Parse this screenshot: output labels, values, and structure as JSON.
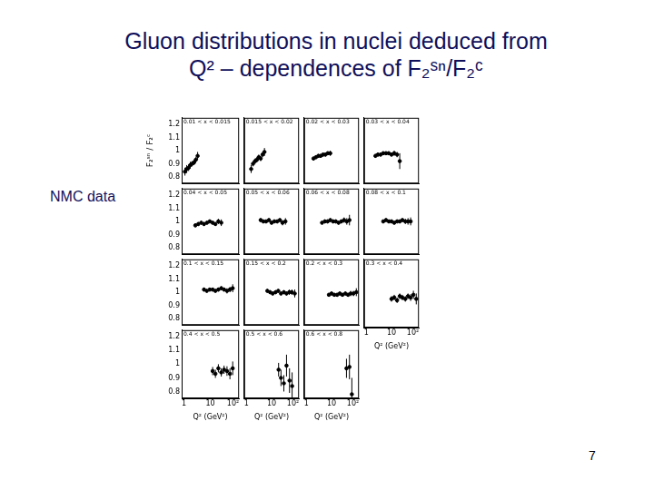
{
  "title": [
    "Gluon distributions in nuclei deduced from",
    "Q² – dependences of F₂ˢⁿ/F₂ᶜ"
  ],
  "side_label": "NMC data",
  "page_number": "7",
  "chart_data": [
    {
      "type": "scatter",
      "title": "0.01 < x < 0.015",
      "y_label": "F₂ˢⁿ / F₂ᶜ",
      "tick_labels": "y",
      "log": "x",
      "grid": false,
      "color": "#000000",
      "marker": "circle",
      "xlim": [
        1,
        100
      ],
      "xticks": [
        1,
        10,
        {
          "value": 100,
          "label": "10²"
        }
      ],
      "ylim": [
        0.75,
        1.25
      ],
      "yticks": [
        0.8,
        0.9,
        1,
        1.1,
        1.2
      ],
      "x": [
        1.3,
        1.5,
        1.75,
        2.0,
        2.3,
        2.7,
        3.1,
        3.6
      ],
      "values": [
        0.84,
        0.86,
        0.87,
        0.89,
        0.9,
        0.91,
        0.93,
        0.96
      ],
      "errors": [
        0.03,
        0.03,
        0.025,
        0.025,
        0.02,
        0.02,
        0.02,
        0.03
      ]
    },
    {
      "type": "scatter",
      "title": "0.015 < x < 0.02",
      "tick_labels": false,
      "log": "x",
      "grid": false,
      "color": "#000000",
      "marker": "circle",
      "xlim": [
        1,
        100
      ],
      "xticks": [
        1,
        10,
        {
          "value": 100,
          "label": "10²"
        }
      ],
      "ylim": [
        0.75,
        1.25
      ],
      "yticks": [
        0.8,
        0.9,
        1,
        1.1,
        1.2
      ],
      "x": [
        1.8,
        2.1,
        2.5,
        2.9,
        3.4,
        4,
        4.7,
        5.5
      ],
      "values": [
        0.86,
        0.9,
        0.92,
        0.93,
        0.95,
        0.94,
        0.97,
        0.99
      ],
      "errors": [
        0.03,
        0.02,
        0.02,
        0.02,
        0.02,
        0.02,
        0.02,
        0.03
      ]
    },
    {
      "type": "scatter",
      "title": "0.02 < x < 0.03",
      "tick_labels": false,
      "log": "x",
      "grid": false,
      "color": "#000000",
      "marker": "circle",
      "xlim": [
        1,
        100
      ],
      "xticks": [
        1,
        10,
        {
          "value": 100,
          "label": "10²"
        }
      ],
      "ylim": [
        0.75,
        1.25
      ],
      "yticks": [
        0.8,
        0.9,
        1,
        1.1,
        1.2
      ],
      "x": [
        2.2,
        2.7,
        3.3,
        4,
        4.9,
        6,
        7.3,
        9
      ],
      "values": [
        0.94,
        0.95,
        0.96,
        0.96,
        0.97,
        0.97,
        0.98,
        0.98
      ],
      "errors": [
        0.015,
        0.015,
        0.015,
        0.015,
        0.015,
        0.015,
        0.015,
        0.02
      ]
    },
    {
      "type": "scatter",
      "title": "0.03 < x < 0.04",
      "tick_labels": false,
      "log": "x",
      "grid": false,
      "color": "#000000",
      "marker": "circle",
      "xlim": [
        1,
        100
      ],
      "xticks": [
        1,
        10,
        {
          "value": 100,
          "label": "10²"
        }
      ],
      "ylim": [
        0.75,
        1.25
      ],
      "yticks": [
        0.8,
        0.9,
        1,
        1.1,
        1.2
      ],
      "x": [
        2.6,
        3.2,
        4,
        5,
        6.3,
        7.9,
        10,
        12.6,
        16,
        20
      ],
      "values": [
        0.96,
        0.97,
        0.97,
        0.98,
        0.98,
        0.98,
        0.97,
        0.98,
        0.97,
        0.92
      ],
      "errors": [
        0.015,
        0.015,
        0.015,
        0.015,
        0.015,
        0.015,
        0.015,
        0.02,
        0.02,
        0.06
      ]
    },
    {
      "type": "scatter",
      "title": "0.04 < x < 0.05",
      "tick_labels": "y",
      "log": "x",
      "grid": false,
      "color": "#000000",
      "marker": "circle",
      "xlim": [
        1,
        100
      ],
      "xticks": [
        1,
        10,
        {
          "value": 100,
          "label": "10²"
        }
      ],
      "ylim": [
        0.75,
        1.25
      ],
      "yticks": [
        0.8,
        0.9,
        1,
        1.1,
        1.2
      ],
      "x": [
        3,
        3.8,
        4.8,
        6,
        7.6,
        9.5,
        12,
        15,
        19,
        24
      ],
      "values": [
        0.97,
        0.98,
        0.99,
        0.98,
        0.99,
        1,
        0.99,
        0.98,
        1,
        0.99
      ],
      "errors": [
        0.015,
        0.015,
        0.015,
        0.015,
        0.015,
        0.015,
        0.015,
        0.015,
        0.02,
        0.025
      ]
    },
    {
      "type": "scatter",
      "title": "0.05 < x < 0.06",
      "tick_labels": false,
      "log": "x",
      "grid": false,
      "color": "#000000",
      "marker": "circle",
      "xlim": [
        1,
        100
      ],
      "xticks": [
        1,
        10,
        {
          "value": 100,
          "label": "10²"
        }
      ],
      "ylim": [
        0.75,
        1.25
      ],
      "yticks": [
        0.8,
        0.9,
        1,
        1.1,
        1.2
      ],
      "x": [
        4,
        5,
        6.3,
        8,
        10,
        12.6,
        16,
        20,
        25,
        32
      ],
      "values": [
        1.01,
        1,
        1,
        1.01,
        0.99,
        1,
        1,
        1.01,
        0.99,
        1
      ],
      "errors": [
        0.015,
        0.015,
        0.015,
        0.015,
        0.015,
        0.015,
        0.015,
        0.015,
        0.02,
        0.025
      ]
    },
    {
      "type": "scatter",
      "title": "0.06 < x < 0.08",
      "tick_labels": false,
      "log": "x",
      "grid": false,
      "color": "#000000",
      "marker": "circle",
      "xlim": [
        1,
        100
      ],
      "xticks": [
        1,
        10,
        {
          "value": 100,
          "label": "10²"
        }
      ],
      "ylim": [
        0.75,
        1.25
      ],
      "yticks": [
        0.8,
        0.9,
        1,
        1.1,
        1.2
      ],
      "x": [
        4.5,
        5.7,
        7.2,
        9,
        11.4,
        14.3,
        18,
        22.7,
        28.6,
        36,
        45
      ],
      "values": [
        0.99,
        1,
        1,
        1.01,
        1,
        1,
        0.99,
        1,
        1.01,
        1,
        1.01
      ],
      "errors": [
        0.015,
        0.015,
        0.015,
        0.015,
        0.015,
        0.015,
        0.015,
        0.015,
        0.02,
        0.025,
        0.04
      ]
    },
    {
      "type": "scatter",
      "title": "0.08 < x < 0.1",
      "tick_labels": false,
      "log": "x",
      "grid": false,
      "color": "#000000",
      "marker": "circle",
      "xlim": [
        1,
        100
      ],
      "xticks": [
        1,
        10,
        {
          "value": 100,
          "label": "10²"
        }
      ],
      "ylim": [
        0.75,
        1.25
      ],
      "yticks": [
        0.8,
        0.9,
        1,
        1.1,
        1.2
      ],
      "x": [
        5,
        6.3,
        8,
        10,
        12.6,
        16,
        20,
        25,
        32,
        40,
        50
      ],
      "values": [
        1,
        1.01,
        1,
        1,
        0.99,
        1,
        1,
        1.01,
        1,
        1,
        1
      ],
      "errors": [
        0.015,
        0.015,
        0.015,
        0.015,
        0.015,
        0.015,
        0.015,
        0.015,
        0.02,
        0.025,
        0.03
      ]
    },
    {
      "type": "scatter",
      "title": "0.1 < x < 0.15",
      "tick_labels": "y",
      "log": "x",
      "grid": false,
      "color": "#000000",
      "marker": "circle",
      "xlim": [
        1,
        100
      ],
      "xticks": [
        1,
        10,
        {
          "value": 100,
          "label": "10²"
        }
      ],
      "ylim": [
        0.75,
        1.25
      ],
      "yticks": [
        0.8,
        0.9,
        1,
        1.1,
        1.2
      ],
      "x": [
        6,
        7.5,
        9.5,
        12,
        15,
        19,
        24,
        30,
        38,
        48,
        60
      ],
      "values": [
        1.02,
        1.01,
        1.02,
        1.02,
        1.01,
        1.02,
        1.03,
        1.02,
        1.01,
        1.02,
        1.03
      ],
      "errors": [
        0.015,
        0.015,
        0.015,
        0.015,
        0.015,
        0.015,
        0.015,
        0.015,
        0.02,
        0.02,
        0.03
      ]
    },
    {
      "type": "scatter",
      "title": "0.15 < x < 0.2",
      "tick_labels": false,
      "log": "x",
      "grid": false,
      "color": "#000000",
      "marker": "circle",
      "xlim": [
        1,
        100
      ],
      "xticks": [
        1,
        10,
        {
          "value": 100,
          "label": "10²"
        }
      ],
      "ylim": [
        0.75,
        1.25
      ],
      "yticks": [
        0.8,
        0.9,
        1,
        1.1,
        1.2
      ],
      "x": [
        7,
        8.8,
        11,
        14,
        17.5,
        22,
        28,
        35,
        44,
        55,
        70
      ],
      "values": [
        1.01,
        1.0,
        0.99,
        1.0,
        1.01,
        0.99,
        1.0,
        0.99,
        1.0,
        1.0,
        0.99
      ],
      "errors": [
        0.015,
        0.015,
        0.015,
        0.015,
        0.015,
        0.015,
        0.015,
        0.015,
        0.02,
        0.02,
        0.03
      ]
    },
    {
      "type": "scatter",
      "title": "0.2 < x < 0.3",
      "tick_labels": false,
      "log": "x",
      "grid": false,
      "color": "#000000",
      "marker": "circle",
      "xlim": [
        1,
        100
      ],
      "xticks": [
        1,
        10,
        {
          "value": 100,
          "label": "10²"
        }
      ],
      "ylim": [
        0.75,
        1.25
      ],
      "yticks": [
        0.8,
        0.9,
        1,
        1.1,
        1.2
      ],
      "x": [
        8,
        10,
        12.6,
        16,
        20,
        25,
        32,
        40,
        50,
        63,
        80
      ],
      "values": [
        0.98,
        0.99,
        0.98,
        0.98,
        0.99,
        0.98,
        0.99,
        0.98,
        0.99,
        0.99,
        1.0
      ],
      "errors": [
        0.015,
        0.015,
        0.015,
        0.015,
        0.015,
        0.015,
        0.015,
        0.015,
        0.02,
        0.02,
        0.03
      ]
    },
    {
      "type": "scatter",
      "title": "0.3 < x < 0.4",
      "tick_labels": "x",
      "x_label": "Q² (GeV²)",
      "log": "x",
      "grid": false,
      "color": "#000000",
      "marker": "circle",
      "xlim": [
        1,
        100
      ],
      "xticks": [
        1,
        10,
        {
          "value": 100,
          "label": "10²"
        }
      ],
      "ylim": [
        0.75,
        1.25
      ],
      "yticks": [
        0.8,
        0.9,
        1,
        1.1,
        1.2
      ],
      "x": [
        10,
        12.6,
        16,
        20,
        25,
        32,
        40,
        50,
        63,
        80
      ],
      "values": [
        0.96,
        0.97,
        0.95,
        0.98,
        0.97,
        0.96,
        0.98,
        0.97,
        0.99,
        0.96
      ],
      "errors": [
        0.02,
        0.02,
        0.02,
        0.02,
        0.02,
        0.02,
        0.02,
        0.025,
        0.03,
        0.04
      ]
    },
    {
      "type": "scatter",
      "title": "0.4 < x < 0.5",
      "x_label": "Q² (GeV²)",
      "log": "x",
      "grid": false,
      "color": "#000000",
      "marker": "circle",
      "xlim": [
        1,
        100
      ],
      "xticks": [
        1,
        10,
        {
          "value": 100,
          "label": "10²"
        }
      ],
      "ylim": [
        0.75,
        1.25
      ],
      "yticks": [
        0.8,
        0.9,
        1,
        1.1,
        1.2
      ],
      "x": [
        12,
        15,
        19,
        24,
        30,
        38,
        48,
        60
      ],
      "values": [
        0.95,
        0.93,
        0.97,
        0.94,
        0.96,
        0.95,
        0.93,
        0.97
      ],
      "errors": [
        0.03,
        0.03,
        0.03,
        0.03,
        0.03,
        0.035,
        0.04,
        0.05
      ]
    },
    {
      "type": "scatter",
      "title": "0.5 < x < 0.6",
      "tick_labels": "x",
      "x_label": "Q² (GeV²)",
      "log": "x",
      "grid": false,
      "color": "#000000",
      "marker": "circle",
      "xlim": [
        1,
        100
      ],
      "xticks": [
        1,
        10,
        {
          "value": 100,
          "label": "10²"
        }
      ],
      "ylim": [
        0.75,
        1.25
      ],
      "yticks": [
        0.8,
        0.9,
        1,
        1.1,
        1.2
      ],
      "x": [
        18,
        22,
        28,
        35,
        45,
        56
      ],
      "values": [
        0.96,
        0.9,
        0.86,
        0.99,
        0.88,
        0.84
      ],
      "errors": [
        0.05,
        0.06,
        0.06,
        0.08,
        0.09,
        0.1
      ]
    },
    {
      "type": "scatter",
      "title": "0.6 < x < 0.8",
      "tick_labels": "x",
      "x_label": "Q² (GeV²)",
      "log": "x",
      "grid": false,
      "color": "#000000",
      "marker": "circle",
      "xlim": [
        1,
        100
      ],
      "xticks": [
        1,
        10,
        {
          "value": 100,
          "label": "10²"
        }
      ],
      "ylim": [
        0.75,
        1.25
      ],
      "yticks": [
        0.8,
        0.9,
        1,
        1.1,
        1.2
      ],
      "x": [
        35,
        45,
        55
      ],
      "values": [
        0.97,
        0.98,
        0.78
      ],
      "errors": [
        0.07,
        0.09,
        0.12
      ]
    }
  ]
}
